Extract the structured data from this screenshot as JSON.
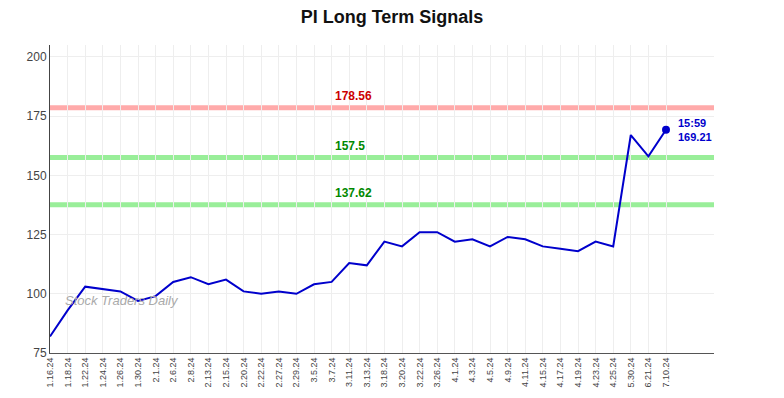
{
  "chart_data": {
    "type": "line",
    "title": "PI Long Term Signals",
    "categories": [
      "1.16.24",
      "1.18.24",
      "1.22.24",
      "1.24.24",
      "1.26.24",
      "1.30.24",
      "2.1.24",
      "2.6.24",
      "2.8.24",
      "2.13.24",
      "2.15.24",
      "2.20.24",
      "2.22.24",
      "2.27.24",
      "2.29.24",
      "3.5.24",
      "3.7.24",
      "3.11.24",
      "3.13.24",
      "3.18.24",
      "3.20.24",
      "3.22.24",
      "3.26.24",
      "4.1.24",
      "4.3.24",
      "4.5.24",
      "4.9.24",
      "4.11.24",
      "4.15.24",
      "4.17.24",
      "4.19.24",
      "4.23.24",
      "4.25.24",
      "5.30.24",
      "6.21.24",
      "7.10.24"
    ],
    "values": [
      82,
      93,
      103,
      102,
      101,
      97,
      99,
      105,
      107,
      104,
      106,
      101,
      100,
      101,
      100,
      104,
      105,
      113,
      112,
      122,
      120,
      126,
      126,
      122,
      123,
      120,
      124,
      123,
      120,
      119,
      118,
      122,
      120,
      167,
      158,
      169.21
    ],
    "color": "#0000cc",
    "ylim": [
      75,
      205
    ],
    "yticks": [
      75,
      100,
      125,
      150,
      175,
      200
    ],
    "grid": true,
    "hlines": [
      {
        "value": 178.56,
        "color": "#ffaaaa",
        "label_color": "#cc0000"
      },
      {
        "value": 157.5,
        "color": "#99ee99",
        "label_color": "#008800"
      },
      {
        "value": 137.62,
        "color": "#99ee99",
        "label_color": "#008800"
      }
    ],
    "annotations": [
      {
        "text": "15:59\n169.21",
        "x": "7.10.24",
        "y": 169.21,
        "marker": "circle"
      },
      {
        "text": "Stock Traders Daily"
      }
    ]
  }
}
